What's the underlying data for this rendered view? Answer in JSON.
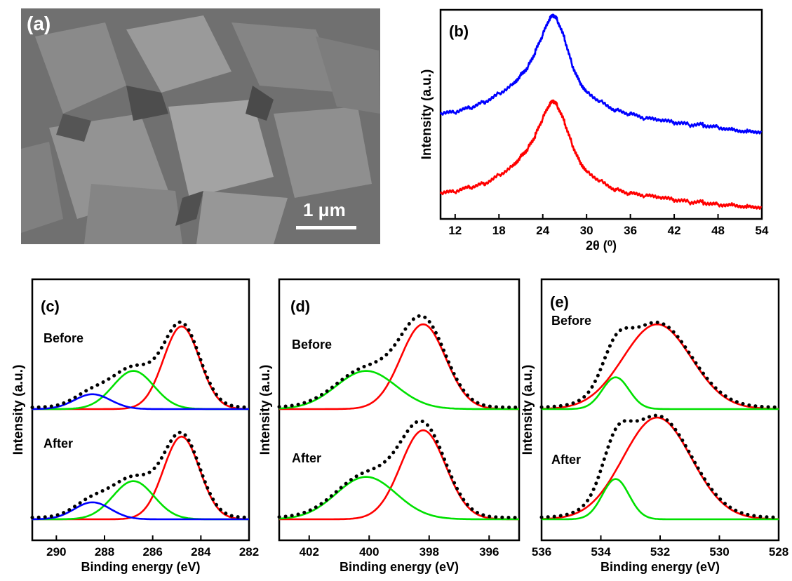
{
  "panels": {
    "a": {
      "label": "(a)",
      "scale_bar": "1 μm"
    }
  },
  "chart_data": [
    {
      "id": "b",
      "type": "line",
      "panel_label": "(b)",
      "xlabel": "2θ (⁰)",
      "ylabel": "Intensity (a.u.)",
      "xlim": [
        10,
        54
      ],
      "xticks": [
        12,
        18,
        24,
        30,
        36,
        42,
        48,
        54
      ],
      "yticks": "none",
      "series": [
        {
          "color": "#0000ff",
          "x": [
            10,
            12,
            14,
            16,
            18,
            20,
            21,
            22,
            23,
            24,
            25,
            25.5,
            26,
            27,
            28,
            29,
            30,
            32,
            34,
            36,
            38,
            40,
            42,
            44,
            46,
            48,
            50,
            52,
            54
          ],
          "y": [
            0.5,
            0.51,
            0.53,
            0.56,
            0.6,
            0.65,
            0.69,
            0.73,
            0.8,
            0.88,
            0.96,
            0.97,
            0.95,
            0.86,
            0.74,
            0.66,
            0.61,
            0.56,
            0.52,
            0.5,
            0.48,
            0.47,
            0.46,
            0.45,
            0.45,
            0.44,
            0.43,
            0.42,
            0.42
          ]
        },
        {
          "color": "#ff0000",
          "x": [
            10,
            12,
            14,
            16,
            18,
            20,
            21,
            22,
            23,
            24,
            25,
            25.5,
            26,
            27,
            28,
            29,
            30,
            32,
            34,
            36,
            38,
            40,
            42,
            44,
            46,
            48,
            50,
            52,
            54
          ],
          "y": [
            0.12,
            0.13,
            0.15,
            0.17,
            0.21,
            0.26,
            0.3,
            0.34,
            0.4,
            0.48,
            0.55,
            0.56,
            0.54,
            0.46,
            0.36,
            0.28,
            0.23,
            0.18,
            0.14,
            0.12,
            0.11,
            0.1,
            0.09,
            0.08,
            0.08,
            0.07,
            0.07,
            0.06,
            0.06
          ]
        }
      ]
    },
    {
      "id": "c",
      "type": "line",
      "panel_label": "(c)",
      "xlabel": "Binding energy (eV)",
      "ylabel": "Intensity (a.u.)",
      "xlim": [
        291,
        282
      ],
      "xticks": [
        290,
        288,
        286,
        284,
        282
      ],
      "yticks": "none",
      "annotations": [
        "Before",
        "After"
      ],
      "stacks": [
        {
          "offset": 0.52,
          "peaks": [
            {
              "color": "#ff0000",
              "center": 284.8,
              "height": 0.39,
              "width": 0.75
            },
            {
              "color": "#00e000",
              "center": 286.8,
              "height": 0.18,
              "width": 0.85
            },
            {
              "color": "#0000ff",
              "center": 288.5,
              "height": 0.07,
              "width": 0.75
            }
          ]
        },
        {
          "offset": 0.0,
          "peaks": [
            {
              "color": "#ff0000",
              "center": 284.8,
              "height": 0.39,
              "width": 0.75
            },
            {
              "color": "#00e000",
              "center": 286.8,
              "height": 0.18,
              "width": 0.85
            },
            {
              "color": "#0000ff",
              "center": 288.5,
              "height": 0.08,
              "width": 0.75
            }
          ]
        }
      ]
    },
    {
      "id": "d",
      "type": "line",
      "panel_label": "(d)",
      "xlabel": "Binding energy (eV)",
      "ylabel": "Intensity (a.u.)",
      "xlim": [
        403,
        395
      ],
      "xticks": [
        402,
        400,
        398,
        396
      ],
      "yticks": "none",
      "annotations": [
        "Before",
        "After"
      ],
      "stacks": [
        {
          "offset": 0.52,
          "peaks": [
            {
              "color": "#ff0000",
              "center": 398.2,
              "height": 0.4,
              "width": 0.75
            },
            {
              "color": "#00e000",
              "center": 400.1,
              "height": 0.18,
              "width": 1.0
            }
          ]
        },
        {
          "offset": 0.0,
          "peaks": [
            {
              "color": "#ff0000",
              "center": 398.2,
              "height": 0.42,
              "width": 0.75
            },
            {
              "color": "#00e000",
              "center": 400.1,
              "height": 0.2,
              "width": 1.0
            }
          ]
        }
      ]
    },
    {
      "id": "e",
      "type": "line",
      "panel_label": "(e)",
      "xlabel": "Binding energy (eV)",
      "ylabel": "Intensity (a.u.)",
      "xlim": [
        536,
        528
      ],
      "xticks": [
        536,
        534,
        532,
        530,
        528
      ],
      "yticks": "none",
      "annotations": [
        "Before",
        "After"
      ],
      "stacks": [
        {
          "offset": 0.52,
          "peaks": [
            {
              "color": "#ff0000",
              "center": 532.1,
              "height": 0.4,
              "width": 1.15
            },
            {
              "color": "#00e000",
              "center": 533.5,
              "height": 0.15,
              "width": 0.45
            }
          ]
        },
        {
          "offset": 0.0,
          "peaks": [
            {
              "color": "#ff0000",
              "center": 532.1,
              "height": 0.48,
              "width": 1.15
            },
            {
              "color": "#00e000",
              "center": 533.5,
              "height": 0.19,
              "width": 0.45
            }
          ]
        }
      ]
    }
  ]
}
